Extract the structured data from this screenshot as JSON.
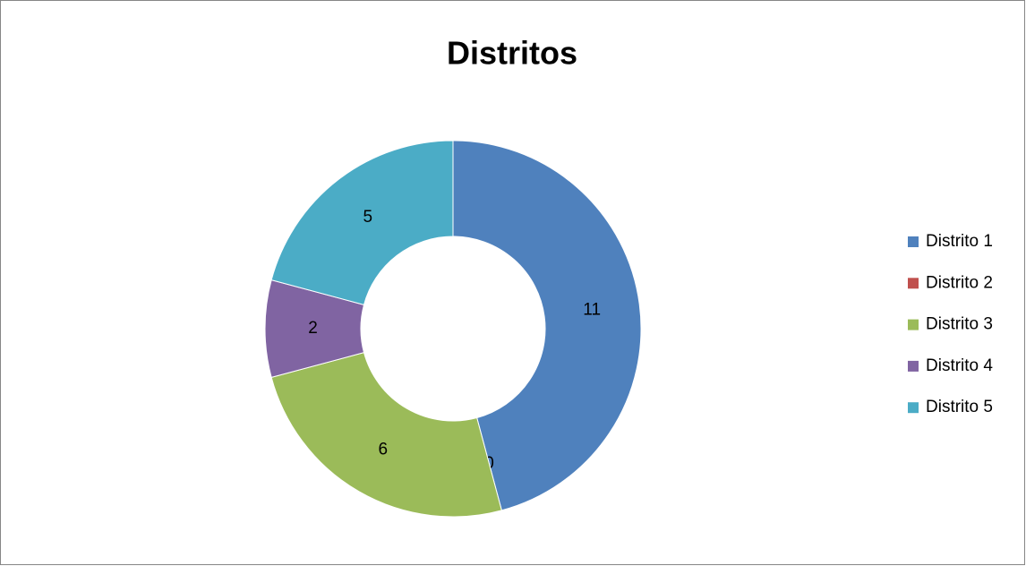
{
  "chart_data": {
    "type": "donut",
    "title": "Distritos",
    "categories": [
      "Distrito 1",
      "Distrito 2",
      "Distrito 3",
      "Distrito 4",
      "Distrito 5"
    ],
    "values": [
      11,
      0,
      6,
      2,
      5
    ],
    "colors": [
      "#4f81bd",
      "#c0504d",
      "#9bbb59",
      "#8064a2",
      "#4bacc6"
    ],
    "legend": "right"
  }
}
